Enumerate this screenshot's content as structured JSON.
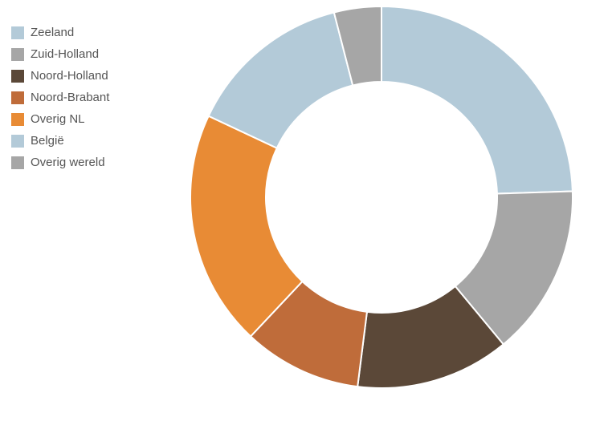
{
  "chart_data": {
    "type": "pie",
    "variant": "donut",
    "legend_position": "top-left",
    "categories": [
      "Zeeland",
      "Zuid-Holland",
      "Noord-Holland",
      "Noord-Brabant",
      "Overig NL",
      "België",
      "Overig wereld"
    ],
    "values": [
      24.5,
      14.5,
      13,
      10,
      20,
      14,
      4
    ],
    "colors": [
      "#b3cad8",
      "#a6a6a6",
      "#5b4838",
      "#bf6c3a",
      "#e88b35",
      "#b3cad8",
      "#a6a6a6"
    ]
  }
}
